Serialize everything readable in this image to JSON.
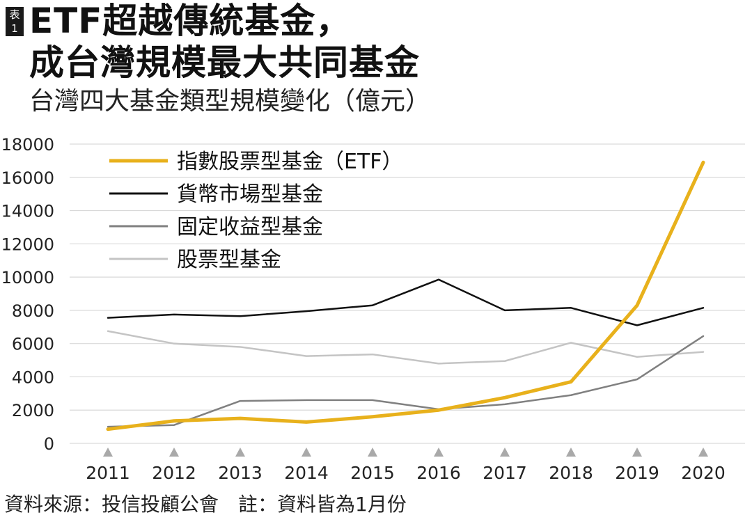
{
  "badge": {
    "line1": "表",
    "line2": "1"
  },
  "title": {
    "line1": "ETF超越傳統基金，",
    "line2": "成台灣規模最大共同基金"
  },
  "subtitle": "台灣四大基金類型規模變化（億元）",
  "footer": "資料來源：投信投顧公會　註：資料皆為1月份",
  "colors": {
    "etf": "#E8B11C",
    "money_market": "#111111",
    "fixed_income": "#808080",
    "equity": "#C4C4C4",
    "axis_marker": "#A9A9A9"
  },
  "chart_data": {
    "type": "line",
    "x": [
      "2011",
      "2012",
      "2013",
      "2014",
      "2015",
      "2016",
      "2017",
      "2018",
      "2019",
      "2020"
    ],
    "ylim": [
      0,
      18000
    ],
    "yticks": [
      "0",
      "2000",
      "4000",
      "6000",
      "8000",
      "10000",
      "12000",
      "14000",
      "16000",
      "18000"
    ],
    "legend_position": "top-left",
    "grid": "horizontal",
    "series": [
      {
        "name": "指數股票型基金（ETF）",
        "color_key": "etf",
        "values": [
          850,
          1350,
          1500,
          1280,
          1600,
          2000,
          2750,
          3700,
          8300,
          16900
        ]
      },
      {
        "name": "貨幣市場型基金",
        "color_key": "money_market",
        "values": [
          7550,
          7750,
          7650,
          7950,
          8300,
          9850,
          8000,
          8150,
          7100,
          8150
        ]
      },
      {
        "name": "固定收益型基金",
        "color_key": "fixed_income",
        "values": [
          1000,
          1100,
          2550,
          2600,
          2600,
          2050,
          2350,
          2900,
          3850,
          6450
        ]
      },
      {
        "name": "股票型基金",
        "color_key": "equity",
        "values": [
          6750,
          6000,
          5800,
          5250,
          5350,
          4800,
          4950,
          6050,
          5200,
          5500
        ]
      }
    ]
  }
}
